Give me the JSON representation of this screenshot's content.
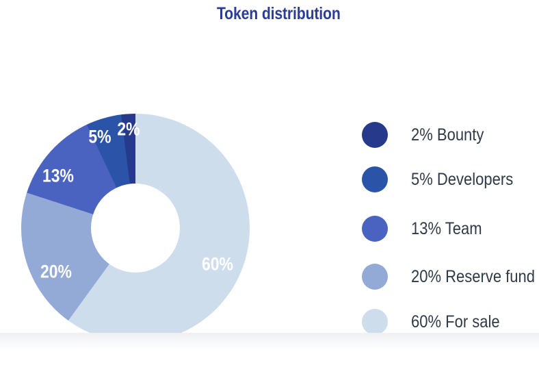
{
  "title": "Token distribution",
  "chart_data": {
    "type": "pie",
    "subtype": "donut",
    "title": "Token distribution",
    "categories": [
      "Bounty",
      "Developers",
      "Team",
      "Reserve fund",
      "For sale"
    ],
    "values": [
      2,
      5,
      13,
      20,
      60
    ],
    "unit": "%",
    "slice_labels": [
      "2%",
      "5%",
      "13%",
      "20%",
      "60%"
    ],
    "legend_labels": [
      "2% Bounty",
      "5% Developers",
      "13% Team",
      "20% Reserve fund",
      "60% For sale"
    ],
    "colors": [
      "#26398a",
      "#2b54a8",
      "#4a63c0",
      "#92aad5",
      "#cdddeb"
    ],
    "legend_position": "right",
    "start_angle_deg": 0,
    "draw_direction": "clockwise largest-first: For sale, Reserve fund, Team, Developers, Bounty ending at 12 o'clock"
  },
  "styles": {
    "title_color": "#2b3d96",
    "legend_text_color": "#2e3a46",
    "slice_label_color": "#ffffff",
    "background": "#ffffff"
  }
}
